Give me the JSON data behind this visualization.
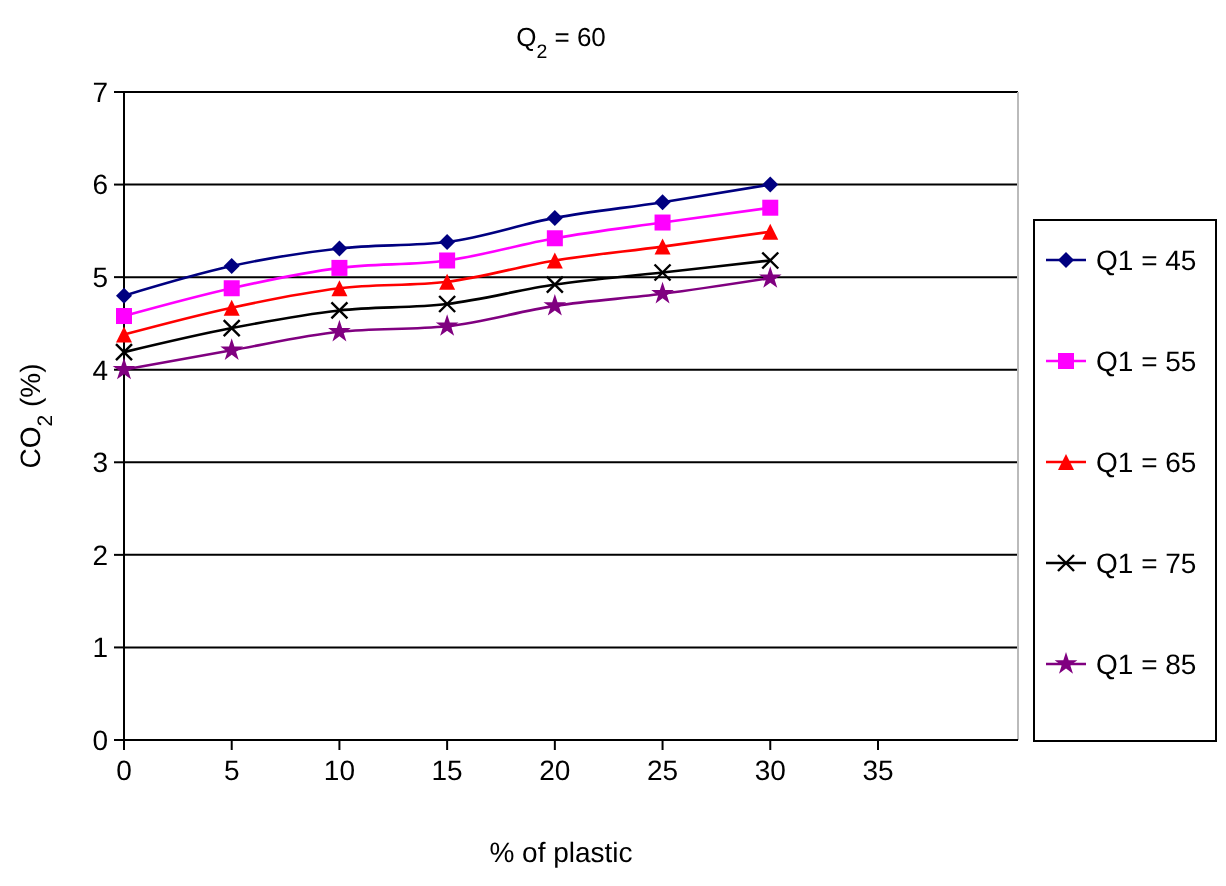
{
  "chart_data": {
    "type": "line",
    "title": "Q$_{2}$ = 60",
    "xlabel": "% of plastic",
    "ylabel": "CO$_{2}$ (%)",
    "x": [
      0,
      5,
      10,
      15,
      20,
      25,
      30
    ],
    "xlim": [
      0,
      41.5
    ],
    "xticks": [
      0,
      5,
      10,
      15,
      20,
      25,
      30,
      35
    ],
    "ylim": [
      0,
      7
    ],
    "yticks": [
      0,
      1,
      2,
      3,
      4,
      5,
      6,
      7
    ],
    "grid": "y",
    "legend": "right",
    "series": [
      {
        "name": "Q1 = 45",
        "color": "#000080",
        "marker": "diamond",
        "values": [
          4.8,
          5.12,
          5.31,
          5.38,
          5.64,
          5.81,
          6.0
        ]
      },
      {
        "name": "Q1 = 55",
        "color": "#ff00ff",
        "marker": "square",
        "values": [
          4.58,
          4.88,
          5.1,
          5.18,
          5.42,
          5.59,
          5.75
        ]
      },
      {
        "name": "Q1 = 65",
        "color": "#ff0000",
        "marker": "triangle",
        "values": [
          4.38,
          4.67,
          4.88,
          4.95,
          5.18,
          5.33,
          5.49
        ]
      },
      {
        "name": "Q1 = 75",
        "color": "#000000",
        "marker": "cross",
        "values": [
          4.19,
          4.45,
          4.64,
          4.71,
          4.92,
          5.05,
          5.18
        ]
      },
      {
        "name": "Q1 = 85",
        "color": "#800080",
        "marker": "star",
        "values": [
          4.0,
          4.21,
          4.41,
          4.47,
          4.69,
          4.82,
          4.99
        ]
      }
    ]
  }
}
